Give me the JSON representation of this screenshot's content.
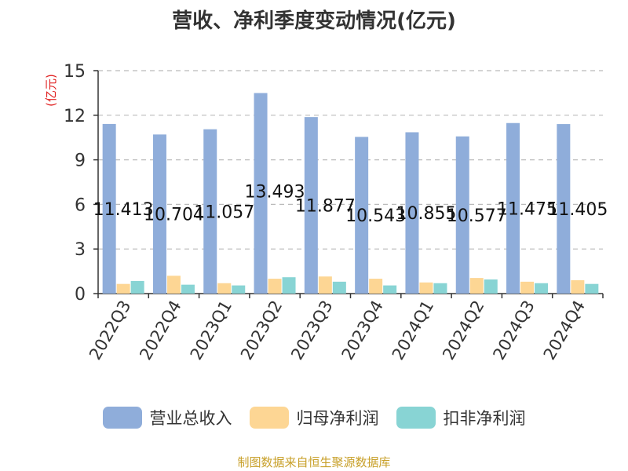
{
  "title": "营收、净利季度变动情况(亿元)",
  "footer": "制图数据来自恒生聚源数据库",
  "chart_data": {
    "type": "bar",
    "categories": [
      "2022Q3",
      "2022Q4",
      "2023Q1",
      "2023Q2",
      "2023Q3",
      "2023Q4",
      "2024Q1",
      "2024Q2",
      "2024Q3",
      "2024Q4"
    ],
    "ylabel": "(亿元)",
    "ylim": [
      0,
      15
    ],
    "yticks": [
      0,
      3,
      6,
      9,
      12,
      15
    ],
    "grid": true,
    "legend_position": "bottom",
    "series": [
      {
        "name": "营业总收入",
        "color": "#8fadda",
        "values": [
          11.413,
          10.704,
          11.057,
          13.493,
          11.877,
          10.543,
          10.855,
          10.577,
          11.475,
          11.405
        ],
        "labels": [
          "11.413",
          "10.704",
          "11.057",
          "13.493",
          "11.877",
          "10.543",
          "10.855",
          "10.577",
          "11.475",
          "11.405"
        ]
      },
      {
        "name": "归母净利润",
        "color": "#fdd694",
        "values": [
          0.65,
          1.2,
          0.7,
          1.0,
          1.15,
          1.0,
          0.75,
          1.05,
          0.8,
          0.9
        ]
      },
      {
        "name": "扣非净利润",
        "color": "#88d4d4",
        "values": [
          0.85,
          0.6,
          0.55,
          1.1,
          0.8,
          0.55,
          0.7,
          0.95,
          0.7,
          0.65
        ]
      }
    ]
  }
}
